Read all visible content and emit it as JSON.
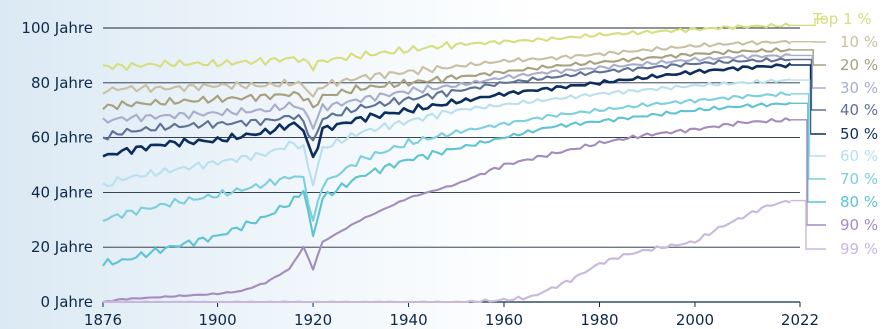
{
  "chart_data": {
    "type": "line",
    "xlim": [
      1876,
      2022
    ],
    "ylim": [
      0,
      100
    ],
    "x_ticks": [
      1876,
      1900,
      1920,
      1940,
      1960,
      1980,
      2000,
      2022
    ],
    "x_tick_labels": [
      "1876",
      "1900",
      "1920",
      "1940",
      "1960",
      "1980",
      "2000",
      "2022"
    ],
    "y_ticks": [
      0,
      20,
      40,
      60,
      80,
      100
    ],
    "y_tick_labels": [
      "0 Jahre",
      "20 Jahre",
      "40 Jahre",
      "60 Jahre",
      "80 Jahre",
      "100 Jahre"
    ],
    "grid": "horizontal",
    "legend": "right",
    "series": [
      {
        "name": "Top 1 %",
        "color": "#d6de7e",
        "x": [
          1876,
          1880,
          1890,
          1900,
          1910,
          1916,
          1918,
          1920,
          1922,
          1930,
          1940,
          1950,
          1960,
          1970,
          1980,
          1990,
          2000,
          2010,
          2020
        ],
        "values": [
          86,
          86,
          87,
          87,
          88,
          89,
          88,
          86,
          88,
          90,
          92,
          94,
          95,
          96,
          97.5,
          98.5,
          99.5,
          100.5,
          101
        ]
      },
      {
        "name": "10 %",
        "color": "#c9bfa3",
        "x": [
          1876,
          1880,
          1890,
          1900,
          1910,
          1916,
          1918,
          1920,
          1922,
          1930,
          1940,
          1950,
          1960,
          1970,
          1980,
          1990,
          2000,
          2010,
          2020
        ],
        "values": [
          77,
          78,
          78,
          79,
          79,
          80,
          79,
          75,
          79,
          82,
          84,
          86,
          88,
          89,
          90.5,
          92,
          93.5,
          94.5,
          95
        ]
      },
      {
        "name": "20 %",
        "color": "#a7a07d",
        "x": [
          1876,
          1880,
          1890,
          1900,
          1910,
          1916,
          1918,
          1920,
          1922,
          1930,
          1940,
          1950,
          1960,
          1970,
          1980,
          1990,
          2000,
          2010,
          2020
        ],
        "values": [
          71,
          72,
          73,
          74,
          75,
          76,
          75,
          71,
          75,
          78,
          80,
          82,
          84,
          86,
          87.5,
          89,
          90.5,
          91.5,
          92
        ]
      },
      {
        "name": "30 %",
        "color": "#a8adcc",
        "x": [
          1876,
          1880,
          1890,
          1900,
          1910,
          1916,
          1918,
          1920,
          1922,
          1930,
          1940,
          1950,
          1960,
          1970,
          1980,
          1990,
          2000,
          2010,
          2020
        ],
        "values": [
          66,
          67,
          68,
          69,
          70,
          72,
          70,
          64,
          71,
          74,
          77,
          79,
          82,
          84,
          85.5,
          87,
          88.5,
          89.5,
          90
        ]
      },
      {
        "name": "40 %",
        "color": "#5f7196",
        "x": [
          1876,
          1880,
          1890,
          1900,
          1910,
          1916,
          1918,
          1920,
          1922,
          1930,
          1940,
          1950,
          1960,
          1970,
          1980,
          1990,
          2000,
          2010,
          2020
        ],
        "values": [
          60,
          62,
          64,
          65,
          66,
          68,
          66,
          58,
          67,
          71,
          74,
          77,
          80,
          82,
          84,
          85.5,
          87,
          88,
          88.5
        ]
      },
      {
        "name": "50 %",
        "color": "#0d2d5e",
        "x": [
          1876,
          1880,
          1890,
          1900,
          1910,
          1916,
          1918,
          1920,
          1922,
          1930,
          1940,
          1950,
          1960,
          1970,
          1980,
          1990,
          2000,
          2010,
          2020
        ],
        "values": [
          53,
          55,
          58,
          59,
          62,
          65,
          63,
          52,
          63,
          67,
          70,
          73,
          76,
          78,
          80,
          82,
          84,
          85.5,
          86.5
        ]
      },
      {
        "name": "60 %",
        "color": "#b9e0ed",
        "x": [
          1876,
          1880,
          1890,
          1900,
          1910,
          1916,
          1918,
          1920,
          1922,
          1930,
          1940,
          1950,
          1960,
          1970,
          1980,
          1990,
          2000,
          2010,
          2020
        ],
        "values": [
          42,
          45,
          48,
          51,
          54,
          58,
          56,
          43,
          56,
          62,
          66,
          70,
          72,
          74,
          76,
          77.5,
          79,
          80,
          81
        ]
      },
      {
        "name": "70 %",
        "color": "#7ccfdd",
        "x": [
          1876,
          1880,
          1890,
          1900,
          1910,
          1916,
          1918,
          1920,
          1922,
          1930,
          1940,
          1950,
          1960,
          1970,
          1980,
          1990,
          2000,
          2010,
          2020
        ],
        "values": [
          30,
          32,
          36,
          39,
          43,
          46,
          45,
          29,
          43,
          52,
          58,
          62,
          65,
          68,
          70,
          72,
          73.5,
          75,
          76
        ]
      },
      {
        "name": "80 %",
        "color": "#5ec3d3",
        "x": [
          1876,
          1880,
          1890,
          1900,
          1910,
          1916,
          1918,
          1920,
          1922,
          1930,
          1940,
          1950,
          1960,
          1970,
          1980,
          1990,
          2000,
          2010,
          2020
        ],
        "values": [
          14,
          15,
          20,
          24,
          31,
          37,
          41,
          24,
          38,
          46,
          52,
          56,
          60,
          64,
          66,
          68,
          70,
          71.5,
          72.5
        ]
      },
      {
        "name": "90 %",
        "color": "#a48cbd",
        "x": [
          1876,
          1880,
          1890,
          1900,
          1905,
          1910,
          1915,
          1918,
          1920,
          1922,
          1930,
          1940,
          1950,
          1960,
          1970,
          1980,
          1990,
          2000,
          2010,
          2020
        ],
        "values": [
          0,
          1,
          2,
          3,
          4,
          7,
          12,
          20,
          12,
          22,
          30,
          38,
          43,
          50,
          54,
          58,
          61,
          63,
          65.5,
          66.5
        ]
      },
      {
        "name": "99 %",
        "color": "#c8b8dd",
        "x": [
          1876,
          1900,
          1920,
          1940,
          1950,
          1958,
          1962,
          1966,
          1970,
          1974,
          1980,
          1985,
          1990,
          2000,
          2005,
          2010,
          2015,
          2020
        ],
        "values": [
          0,
          0,
          0,
          0,
          0,
          0.5,
          1,
          2,
          5,
          8,
          14,
          17,
          19,
          22,
          27,
          31,
          35,
          37
        ]
      }
    ]
  }
}
